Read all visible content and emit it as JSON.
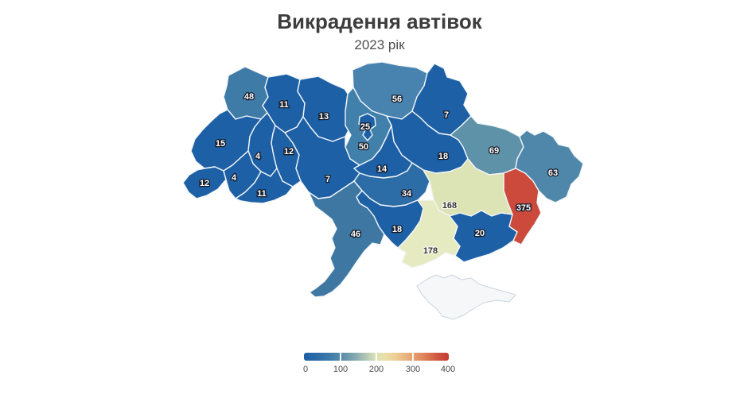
{
  "title": "Викрадення автівок",
  "subtitle": "2023 рік",
  "chart_data": {
    "type": "choropleth",
    "title": "Викрадення автівок",
    "subtitle": "2023 рік",
    "legend": {
      "min": 0,
      "max": 400,
      "ticks": [
        "0",
        "100",
        "200",
        "300",
        "400"
      ],
      "gradient_colors": [
        "#1d5fa5",
        "#4180ab",
        "#dde3b6",
        "#e59a6b",
        "#c43a32"
      ]
    },
    "no_data_color": "#f5f7f9",
    "regions": [
      {
        "id": "volyn",
        "value": 48,
        "color": "#3e7ba7",
        "label_style": "light"
      },
      {
        "id": "rivne",
        "value": 11,
        "color": "#1d60a6",
        "label_style": "light"
      },
      {
        "id": "zhytomyr",
        "value": 13,
        "color": "#1d60a6",
        "label_style": "light"
      },
      {
        "id": "chernihiv",
        "value": 56,
        "color": "#4783ae",
        "label_style": "light"
      },
      {
        "id": "sumy",
        "value": 7,
        "color": "#1d60a6",
        "label_style": "light"
      },
      {
        "id": "kyiv-oblast",
        "value": 50,
        "color": "#4080aa",
        "label_style": "light"
      },
      {
        "id": "kyiv-city",
        "value": 25,
        "color": "#1d60a6",
        "label_style": "light"
      },
      {
        "id": "lviv",
        "value": 15,
        "color": "#1d60a6",
        "label_style": "light"
      },
      {
        "id": "ternopil",
        "value": 4,
        "color": "#1d60a6",
        "label_style": "light"
      },
      {
        "id": "khmelnytskyi",
        "value": 12,
        "color": "#1d60a6",
        "label_style": "light"
      },
      {
        "id": "zakarpattia",
        "value": 12,
        "color": "#1d60a6",
        "label_style": "light"
      },
      {
        "id": "ivano-frankivsk",
        "value": 4,
        "color": "#1d60a6",
        "label_style": "light"
      },
      {
        "id": "chernivtsi",
        "value": 11,
        "color": "#1d60a6",
        "label_style": "light"
      },
      {
        "id": "vinnytsia",
        "value": 7,
        "color": "#1d60a6",
        "label_style": "light"
      },
      {
        "id": "cherkasy",
        "value": 14,
        "color": "#1d60a6",
        "label_style": "light"
      },
      {
        "id": "poltava",
        "value": 18,
        "color": "#1d60a6",
        "label_style": "light"
      },
      {
        "id": "kirovohrad",
        "value": 34,
        "color": "#2d6da7",
        "label_style": "light"
      },
      {
        "id": "kharkiv",
        "value": 69,
        "color": "#5e92a9",
        "label_style": "light"
      },
      {
        "id": "luhansk",
        "value": 63,
        "color": "#4e87a9",
        "label_style": "light"
      },
      {
        "id": "donetsk",
        "value": 375,
        "color": "#cb4a3c",
        "label_style": "light"
      },
      {
        "id": "dnipropetrovsk",
        "value": 168,
        "color": "#dce3b4",
        "label_style": "dark"
      },
      {
        "id": "zaporizhzhia",
        "value": 20,
        "color": "#1d60a6",
        "label_style": "light"
      },
      {
        "id": "kherson",
        "value": 178,
        "color": "#e6eac0",
        "label_style": "dark"
      },
      {
        "id": "mykolaiv",
        "value": 18,
        "color": "#1d60a6",
        "label_style": "light"
      },
      {
        "id": "odesa",
        "value": 46,
        "color": "#3d77a2",
        "label_style": "light"
      },
      {
        "id": "crimea",
        "value": null,
        "color": "#f5f7f9",
        "label_style": "none"
      }
    ]
  }
}
